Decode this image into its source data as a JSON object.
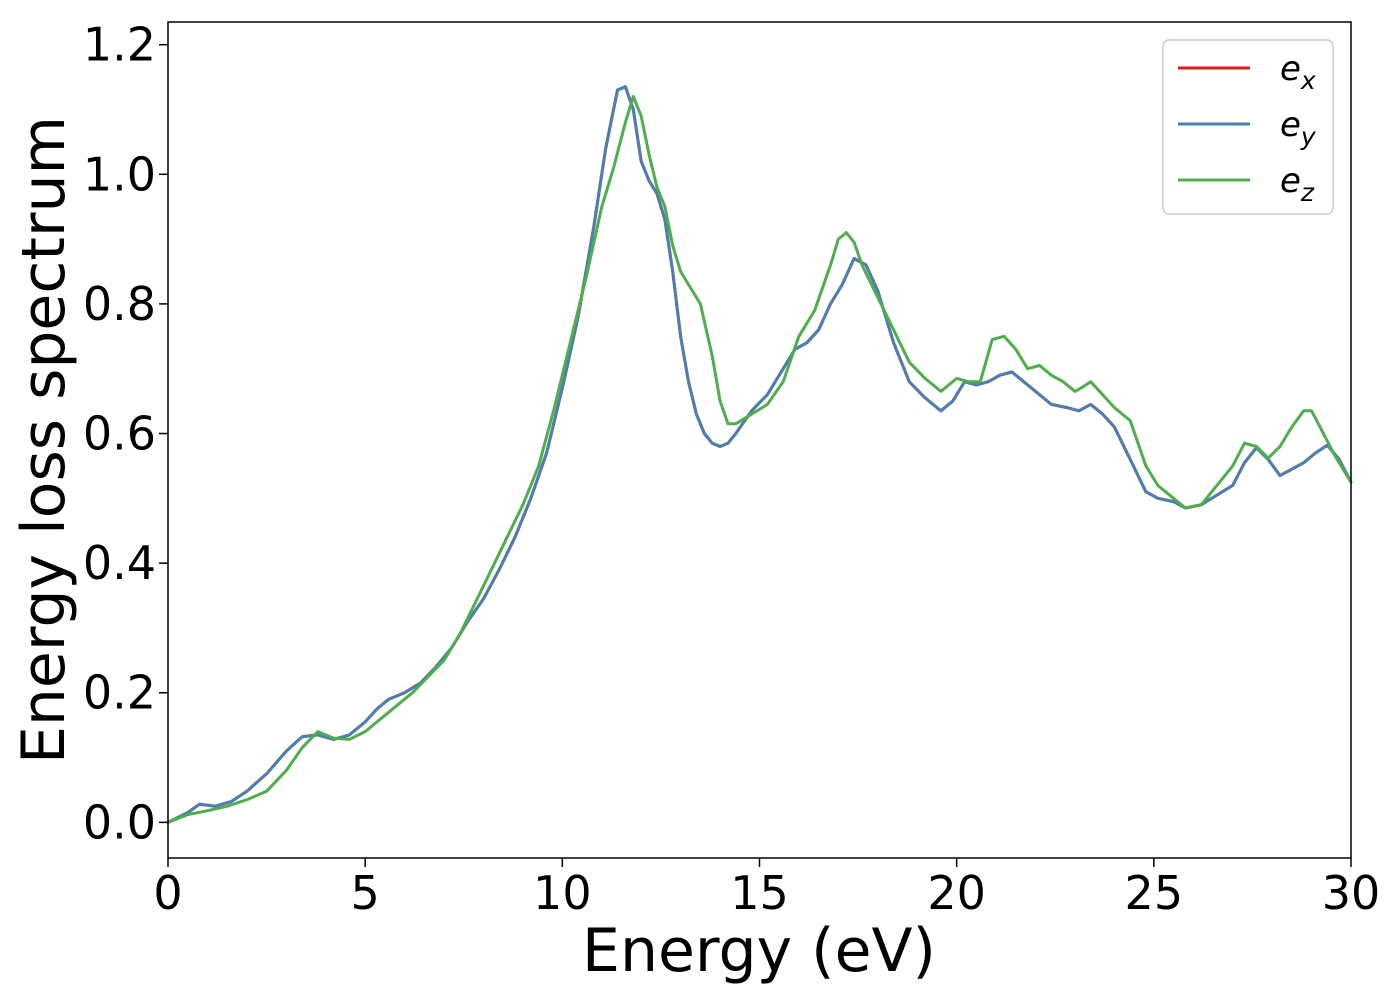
{
  "chart_data": {
    "type": "line",
    "title": "",
    "xlabel": "Energy (eV)",
    "ylabel": "Energy loss spectrum",
    "xlim": [
      0,
      30
    ],
    "ylim": [
      -0.055,
      1.235
    ],
    "xticks": [
      0,
      5,
      10,
      15,
      20,
      25,
      30
    ],
    "yticks": [
      0.0,
      0.2,
      0.4,
      0.6,
      0.8,
      1.0,
      1.2
    ],
    "xtick_labels": [
      "0",
      "5",
      "10",
      "15",
      "20",
      "25",
      "30"
    ],
    "ytick_labels": [
      "0.0",
      "0.2",
      "0.4",
      "0.6",
      "0.8",
      "1.0",
      "1.2"
    ],
    "grid": false,
    "legend_position": "top-right",
    "series": [
      {
        "name": "e_x",
        "label_base": "e",
        "label_sub": "x",
        "color": "#e41a1c",
        "x": [
          0,
          0.5,
          0.8,
          1.2,
          1.6,
          2.0,
          2.5,
          3.0,
          3.4,
          3.8,
          4.2,
          4.6,
          5.0,
          5.3,
          5.6,
          6.0,
          6.4,
          6.8,
          7.2,
          7.6,
          8.0,
          8.4,
          8.8,
          9.2,
          9.6,
          10.0,
          10.4,
          10.8,
          11.1,
          11.4,
          11.6,
          11.8,
          12.0,
          12.2,
          12.4,
          12.6,
          12.8,
          13.0,
          13.2,
          13.4,
          13.6,
          13.8,
          14.0,
          14.2,
          14.4,
          14.8,
          15.2,
          15.6,
          15.9,
          16.2,
          16.5,
          16.8,
          17.1,
          17.4,
          17.7,
          18.0,
          18.4,
          18.8,
          19.2,
          19.6,
          19.9,
          20.2,
          20.5,
          20.8,
          21.1,
          21.4,
          21.7,
          22.0,
          22.4,
          22.8,
          23.1,
          23.4,
          23.7,
          24.0,
          24.4,
          24.8,
          25.1,
          25.5,
          25.8,
          26.2,
          26.6,
          27.0,
          27.3,
          27.6,
          27.9,
          28.2,
          28.5,
          28.8,
          29.1,
          29.4,
          29.7,
          30.0
        ],
        "y": [
          0.0,
          0.015,
          0.028,
          0.025,
          0.032,
          0.048,
          0.075,
          0.11,
          0.132,
          0.135,
          0.128,
          0.135,
          0.155,
          0.175,
          0.19,
          0.2,
          0.215,
          0.24,
          0.27,
          0.31,
          0.345,
          0.39,
          0.44,
          0.5,
          0.57,
          0.67,
          0.78,
          0.92,
          1.04,
          1.13,
          1.135,
          1.1,
          1.02,
          0.99,
          0.97,
          0.93,
          0.85,
          0.75,
          0.68,
          0.63,
          0.6,
          0.585,
          0.58,
          0.585,
          0.6,
          0.635,
          0.66,
          0.7,
          0.73,
          0.74,
          0.76,
          0.8,
          0.83,
          0.87,
          0.86,
          0.82,
          0.74,
          0.68,
          0.655,
          0.635,
          0.65,
          0.68,
          0.675,
          0.68,
          0.69,
          0.695,
          0.68,
          0.665,
          0.645,
          0.64,
          0.635,
          0.645,
          0.63,
          0.61,
          0.56,
          0.51,
          0.5,
          0.495,
          0.485,
          0.49,
          0.505,
          0.52,
          0.555,
          0.578,
          0.56,
          0.535,
          0.545,
          0.555,
          0.57,
          0.582,
          0.56,
          0.525
        ]
      },
      {
        "name": "e_y",
        "label_base": "e",
        "label_sub": "y",
        "color": "#4a7fb5",
        "x": [
          0,
          0.5,
          0.8,
          1.2,
          1.6,
          2.0,
          2.5,
          3.0,
          3.4,
          3.8,
          4.2,
          4.6,
          5.0,
          5.3,
          5.6,
          6.0,
          6.4,
          6.8,
          7.2,
          7.6,
          8.0,
          8.4,
          8.8,
          9.2,
          9.6,
          10.0,
          10.4,
          10.8,
          11.1,
          11.4,
          11.6,
          11.8,
          12.0,
          12.2,
          12.4,
          12.6,
          12.8,
          13.0,
          13.2,
          13.4,
          13.6,
          13.8,
          14.0,
          14.2,
          14.4,
          14.8,
          15.2,
          15.6,
          15.9,
          16.2,
          16.5,
          16.8,
          17.1,
          17.4,
          17.7,
          18.0,
          18.4,
          18.8,
          19.2,
          19.6,
          19.9,
          20.2,
          20.5,
          20.8,
          21.1,
          21.4,
          21.7,
          22.0,
          22.4,
          22.8,
          23.1,
          23.4,
          23.7,
          24.0,
          24.4,
          24.8,
          25.1,
          25.5,
          25.8,
          26.2,
          26.6,
          27.0,
          27.3,
          27.6,
          27.9,
          28.2,
          28.5,
          28.8,
          29.1,
          29.4,
          29.7,
          30.0
        ],
        "y": [
          0.0,
          0.015,
          0.028,
          0.025,
          0.032,
          0.048,
          0.075,
          0.11,
          0.132,
          0.135,
          0.128,
          0.135,
          0.155,
          0.175,
          0.19,
          0.2,
          0.215,
          0.24,
          0.27,
          0.31,
          0.345,
          0.39,
          0.44,
          0.5,
          0.57,
          0.67,
          0.78,
          0.92,
          1.04,
          1.13,
          1.135,
          1.1,
          1.02,
          0.99,
          0.97,
          0.93,
          0.85,
          0.75,
          0.68,
          0.63,
          0.6,
          0.585,
          0.58,
          0.585,
          0.6,
          0.635,
          0.66,
          0.7,
          0.73,
          0.74,
          0.76,
          0.8,
          0.83,
          0.87,
          0.86,
          0.82,
          0.74,
          0.68,
          0.655,
          0.635,
          0.65,
          0.68,
          0.675,
          0.68,
          0.69,
          0.695,
          0.68,
          0.665,
          0.645,
          0.64,
          0.635,
          0.645,
          0.63,
          0.61,
          0.56,
          0.51,
          0.5,
          0.495,
          0.485,
          0.49,
          0.505,
          0.52,
          0.555,
          0.578,
          0.56,
          0.535,
          0.545,
          0.555,
          0.57,
          0.582,
          0.56,
          0.525
        ]
      },
      {
        "name": "e_z",
        "label_base": "e",
        "label_sub": "z",
        "color": "#4daf4a",
        "x": [
          0,
          0.5,
          1.0,
          1.5,
          2.0,
          2.5,
          3.0,
          3.4,
          3.8,
          4.2,
          4.6,
          5.0,
          5.4,
          5.8,
          6.2,
          6.6,
          7.0,
          7.4,
          7.8,
          8.2,
          8.6,
          9.0,
          9.4,
          9.8,
          10.2,
          10.6,
          11.0,
          11.3,
          11.6,
          11.8,
          12.0,
          12.2,
          12.4,
          12.6,
          12.8,
          13.0,
          13.2,
          13.5,
          13.8,
          14.0,
          14.2,
          14.4,
          14.8,
          15.2,
          15.6,
          16.0,
          16.4,
          16.8,
          17.0,
          17.2,
          17.4,
          17.6,
          18.0,
          18.4,
          18.8,
          19.2,
          19.6,
          20.0,
          20.3,
          20.6,
          20.9,
          21.2,
          21.5,
          21.8,
          22.1,
          22.4,
          22.7,
          23.0,
          23.2,
          23.4,
          23.7,
          24.0,
          24.4,
          24.8,
          25.1,
          25.5,
          25.8,
          26.2,
          26.6,
          27.0,
          27.3,
          27.6,
          27.9,
          28.2,
          28.5,
          28.8,
          29.0,
          29.3,
          29.6,
          30.0
        ],
        "y": [
          0.0,
          0.012,
          0.018,
          0.025,
          0.035,
          0.048,
          0.08,
          0.115,
          0.14,
          0.13,
          0.128,
          0.14,
          0.16,
          0.18,
          0.2,
          0.225,
          0.25,
          0.29,
          0.34,
          0.39,
          0.44,
          0.49,
          0.55,
          0.64,
          0.74,
          0.84,
          0.95,
          1.01,
          1.08,
          1.12,
          1.09,
          1.03,
          0.98,
          0.95,
          0.89,
          0.85,
          0.83,
          0.8,
          0.72,
          0.65,
          0.615,
          0.615,
          0.63,
          0.645,
          0.68,
          0.75,
          0.79,
          0.86,
          0.9,
          0.91,
          0.895,
          0.86,
          0.81,
          0.76,
          0.71,
          0.685,
          0.665,
          0.685,
          0.68,
          0.68,
          0.745,
          0.75,
          0.73,
          0.7,
          0.705,
          0.69,
          0.68,
          0.665,
          0.672,
          0.68,
          0.66,
          0.64,
          0.62,
          0.55,
          0.52,
          0.5,
          0.485,
          0.49,
          0.52,
          0.55,
          0.585,
          0.58,
          0.562,
          0.58,
          0.61,
          0.635,
          0.635,
          0.6,
          0.565,
          0.525
        ]
      }
    ]
  }
}
